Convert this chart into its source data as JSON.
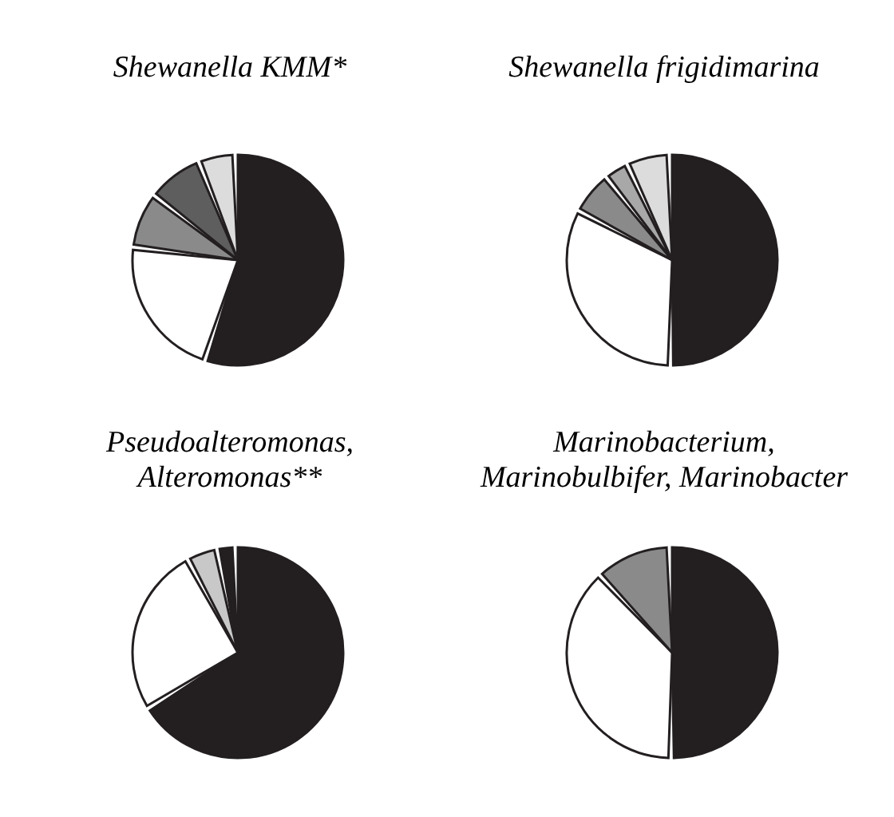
{
  "chart_data": [
    {
      "type": "pie",
      "title": "Shewanella KMM*",
      "categories": [
        null,
        null,
        null,
        null,
        null
      ],
      "values": [
        57,
        22,
        8,
        8,
        5
      ],
      "colors": [
        "#231f20",
        "#ffffff",
        "#8a8a8a",
        "#5e5e5e",
        "#dcdcdc"
      ]
    },
    {
      "type": "pie",
      "title": "Shewanella frigidimarina",
      "categories": [
        null,
        null,
        null,
        null,
        null
      ],
      "values": [
        52,
        33,
        6,
        3,
        6
      ],
      "colors": [
        "#231f20",
        "#ffffff",
        "#8a8a8a",
        "#a8a8a8",
        "#dcdcdc"
      ]
    },
    {
      "type": "pie",
      "title": "Pseudoalteromonas,\nAlteromonas**",
      "categories": [
        null,
        null,
        null,
        null
      ],
      "values": [
        68,
        26,
        4,
        2
      ],
      "colors": [
        "#231f20",
        "#ffffff",
        "#c8c8c8",
        "#231f20"
      ]
    },
    {
      "type": "pie",
      "title": "Marinobacterium,\nMarinobulbifer, Marinobacter",
      "categories": [
        null,
        null,
        null
      ],
      "values": [
        51,
        38,
        11
      ],
      "colors": [
        "#231f20",
        "#ffffff",
        "#8a8a8a"
      ]
    }
  ]
}
